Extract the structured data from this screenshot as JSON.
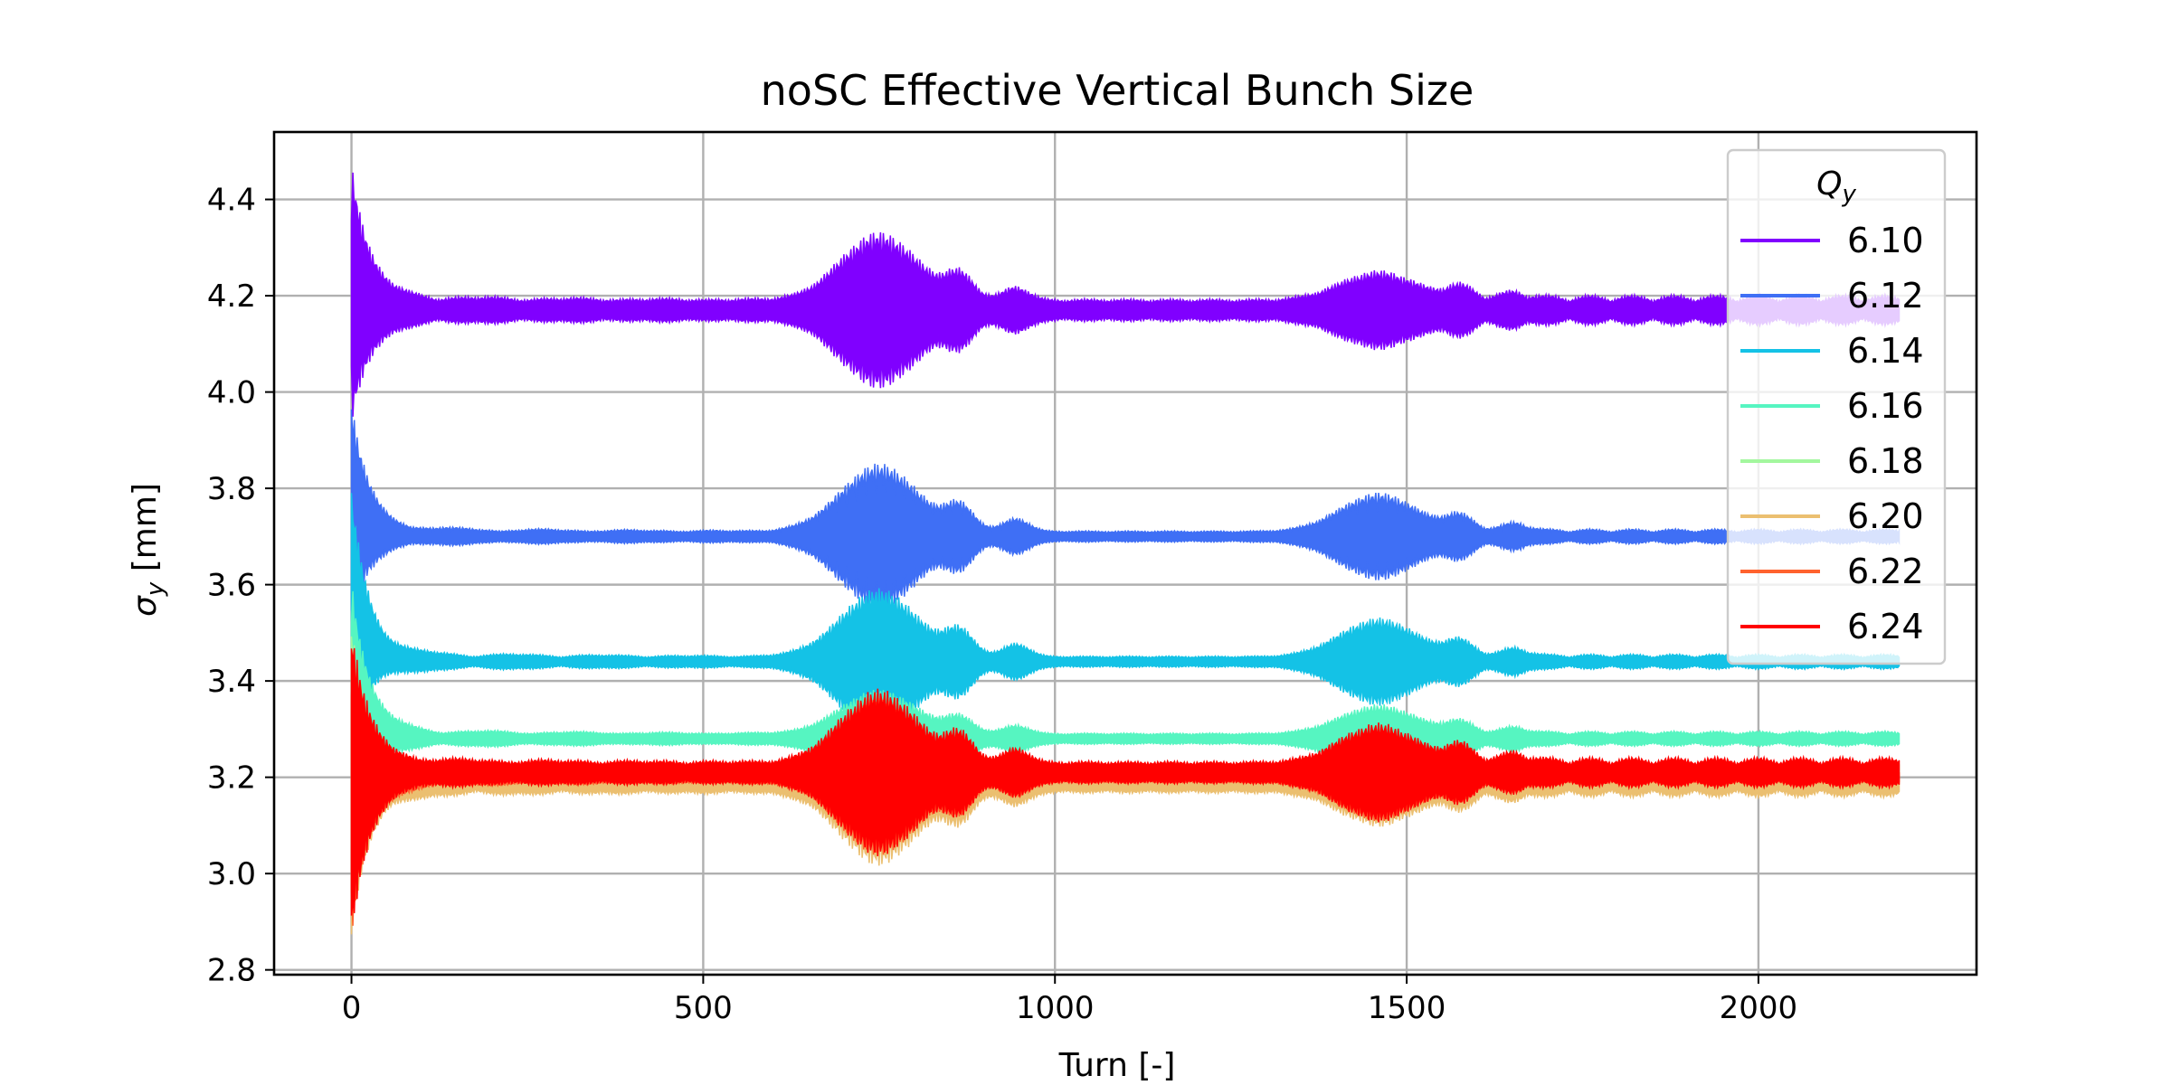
{
  "chart_data": {
    "type": "line",
    "title": "noSC Effective Vertical Bunch Size",
    "xlabel": "Turn [-]",
    "ylabel_main": "σ",
    "ylabel_sub": "y",
    "ylabel_unit": " [mm]",
    "xlim": [
      -110,
      2310
    ],
    "ylim": [
      2.79,
      4.54
    ],
    "xticks": [
      0,
      500,
      1000,
      1500,
      2000
    ],
    "xtick_labels": [
      "0",
      "500",
      "1000",
      "1500",
      "2000"
    ],
    "yticks": [
      2.8,
      3.0,
      3.2,
      3.4,
      3.6,
      3.8,
      4.0,
      4.2,
      4.4
    ],
    "ytick_labels": [
      "2.8",
      "3.0",
      "3.2",
      "3.4",
      "3.6",
      "3.8",
      "4.0",
      "4.2",
      "4.4"
    ],
    "grid": true,
    "legend": {
      "title_main": "Q",
      "title_sub": "y",
      "placement": "upper right"
    },
    "turn_range": [
      0,
      2200
    ],
    "series": [
      {
        "name": "6.10",
        "color": "#8000ff",
        "mean": 4.17,
        "initial_envelope": [
          3.95,
          4.46
        ],
        "settle_amplitude": 0.02,
        "band_peaks": [
          {
            "turn": 750,
            "half_width": 0.14
          },
          {
            "turn": 1460,
            "half_width": 0.06
          }
        ]
      },
      {
        "name": "6.12",
        "color": "#3f6ff5",
        "mean": 3.7,
        "initial_envelope": [
          3.55,
          3.96
        ],
        "settle_amplitude": 0.01,
        "band_peaks": [
          {
            "turn": 750,
            "half_width": 0.14
          },
          {
            "turn": 1460,
            "half_width": 0.08
          }
        ]
      },
      {
        "name": "6.14",
        "color": "#14c2e6",
        "mean": 3.44,
        "initial_envelope": [
          3.3,
          3.78
        ],
        "settle_amplitude": 0.01,
        "band_peaks": [
          {
            "turn": 750,
            "half_width": 0.14
          },
          {
            "turn": 1460,
            "half_width": 0.08
          }
        ]
      },
      {
        "name": "6.16",
        "color": "#56f5c1",
        "mean": 3.28,
        "initial_envelope": [
          3.15,
          3.6
        ],
        "settle_amplitude": 0.01,
        "band_peaks": [
          {
            "turn": 750,
            "half_width": 0.09
          },
          {
            "turn": 1460,
            "half_width": 0.06
          }
        ]
      },
      {
        "name": "6.18",
        "color": "#a3f79e",
        "mean": 3.21,
        "initial_envelope": [
          3.05,
          3.5
        ],
        "settle_amplitude": 0.01,
        "band_peaks": [
          {
            "turn": 750,
            "half_width": 0.1
          },
          {
            "turn": 1460,
            "half_width": 0.06
          }
        ]
      },
      {
        "name": "6.20",
        "color": "#ebbf70",
        "mean": 3.19,
        "initial_envelope": [
          2.9,
          3.4
        ],
        "settle_amplitude": 0.02,
        "band_peaks": [
          {
            "turn": 750,
            "half_width": 0.15
          },
          {
            "turn": 1460,
            "half_width": 0.07
          }
        ]
      },
      {
        "name": "6.22",
        "color": "#ff622e",
        "mean": 3.2,
        "initial_envelope": [
          2.88,
          3.45
        ],
        "settle_amplitude": 0.01,
        "band_peaks": [
          {
            "turn": 750,
            "half_width": 0.15
          },
          {
            "turn": 1460,
            "half_width": 0.08
          }
        ]
      },
      {
        "name": "6.24",
        "color": "#ff0000",
        "mean": 3.21,
        "initial_envelope": [
          2.89,
          3.49
        ],
        "settle_amplitude": 0.02,
        "band_peaks": [
          {
            "turn": 750,
            "half_width": 0.15
          },
          {
            "turn": 1460,
            "half_width": 0.08
          }
        ]
      }
    ]
  }
}
